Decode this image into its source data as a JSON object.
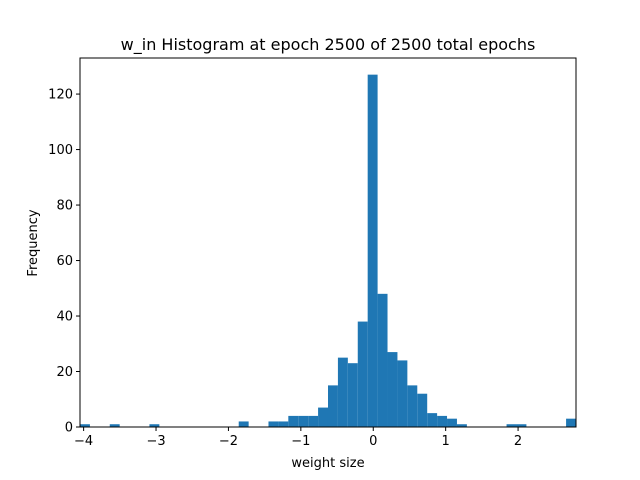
{
  "chart_data": {
    "type": "bar",
    "title": "w_in Histogram at epoch 2500 of 2500 total epochs",
    "xlabel": "weight size",
    "ylabel": "Frequency",
    "xlim": [
      -4.05,
      2.8
    ],
    "ylim": [
      0,
      133
    ],
    "x_ticks": [
      -4,
      -3,
      -2,
      -1,
      0,
      1,
      2
    ],
    "x_tick_labels": [
      "−4",
      "−3",
      "−2",
      "−1",
      "0",
      "1",
      "2"
    ],
    "y_ticks": [
      0,
      20,
      40,
      60,
      80,
      100,
      120
    ],
    "y_tick_labels": [
      "0",
      "20",
      "40",
      "60",
      "80",
      "100",
      "120"
    ],
    "bar_color": "#1f77b4",
    "grid": false,
    "bin_width": 0.137,
    "bins": [
      {
        "x0": -4.05,
        "count": 1
      },
      {
        "x0": -3.639,
        "count": 1
      },
      {
        "x0": -3.091,
        "count": 1
      },
      {
        "x0": -1.858,
        "count": 2
      },
      {
        "x0": -1.447,
        "count": 2
      },
      {
        "x0": -1.31,
        "count": 2
      },
      {
        "x0": -1.173,
        "count": 4
      },
      {
        "x0": -1.036,
        "count": 4
      },
      {
        "x0": -0.899,
        "count": 4
      },
      {
        "x0": -0.762,
        "count": 7
      },
      {
        "x0": -0.625,
        "count": 15
      },
      {
        "x0": -0.488,
        "count": 25
      },
      {
        "x0": -0.351,
        "count": 23
      },
      {
        "x0": -0.214,
        "count": 38
      },
      {
        "x0": -0.077,
        "count": 127
      },
      {
        "x0": 0.06,
        "count": 48
      },
      {
        "x0": 0.197,
        "count": 27
      },
      {
        "x0": 0.334,
        "count": 24
      },
      {
        "x0": 0.471,
        "count": 15
      },
      {
        "x0": 0.608,
        "count": 12
      },
      {
        "x0": 0.745,
        "count": 5
      },
      {
        "x0": 0.882,
        "count": 4
      },
      {
        "x0": 1.019,
        "count": 3
      },
      {
        "x0": 1.156,
        "count": 1
      },
      {
        "x0": 1.841,
        "count": 1
      },
      {
        "x0": 1.978,
        "count": 1
      },
      {
        "x0": 2.663,
        "count": 3
      }
    ]
  }
}
